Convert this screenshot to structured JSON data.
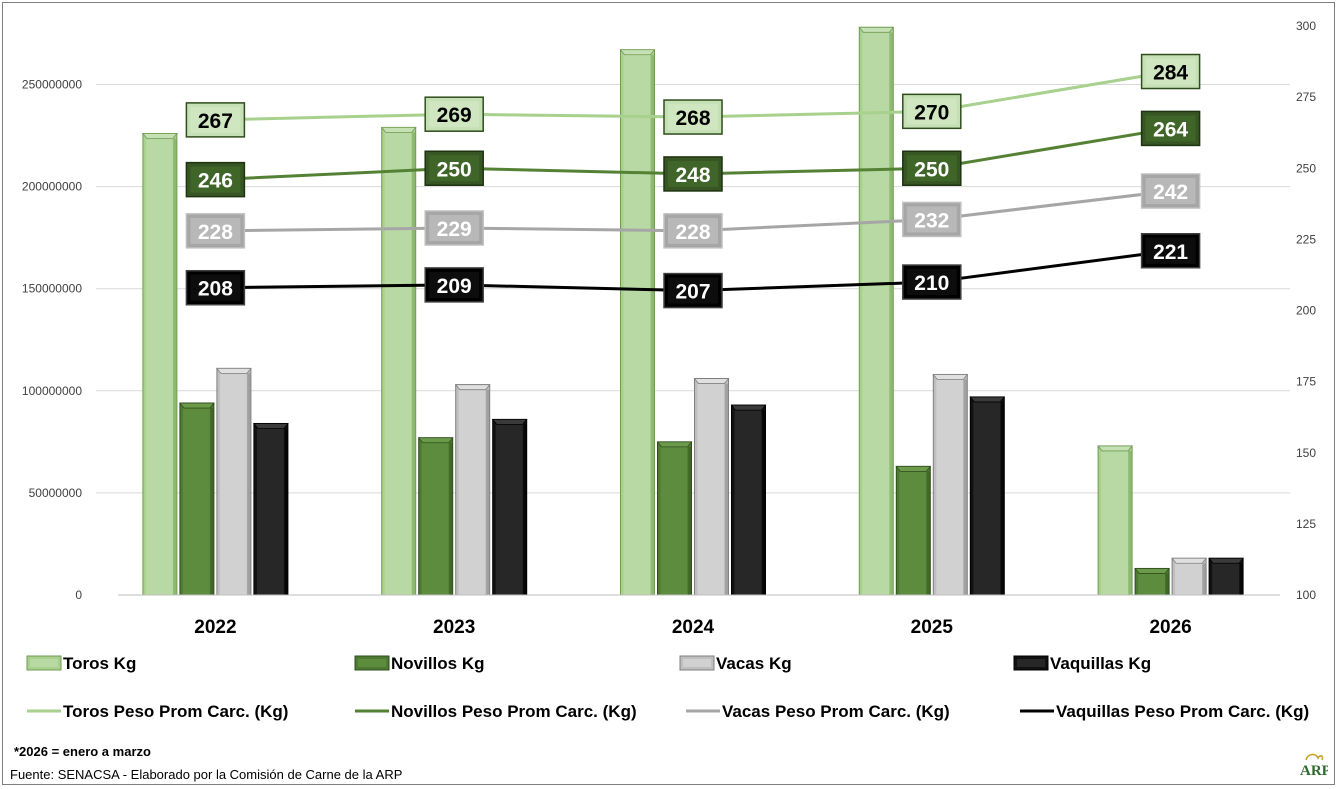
{
  "chart_data": {
    "type": "bar",
    "categories": [
      "2022",
      "2023",
      "2024",
      "2025",
      "2026"
    ],
    "y_left": {
      "min": 0,
      "max": 275000000,
      "ticks": [
        0,
        50000000,
        100000000,
        150000000,
        200000000,
        250000000
      ]
    },
    "y_right": {
      "min": 100,
      "max": 300,
      "ticks": [
        100,
        125,
        150,
        175,
        200,
        225,
        250,
        275,
        300
      ]
    },
    "grid": true,
    "legend_position": "bottom",
    "bar_series": [
      {
        "name": "Toros Kg",
        "values": [
          226000000,
          229000000,
          267000000,
          278000000,
          73000000
        ],
        "color": "#a9d18e"
      },
      {
        "name": "Novillos Kg",
        "values": [
          94000000,
          77000000,
          75000000,
          63000000,
          13000000
        ],
        "color": "#548235"
      },
      {
        "name": "Vacas Kg",
        "values": [
          111000000,
          103000000,
          106000000,
          108000000,
          18000000
        ],
        "color": "#bfbfbf"
      },
      {
        "name": "Vaquillas Kg",
        "values": [
          84000000,
          86000000,
          93000000,
          97000000,
          18000000
        ],
        "color": "#000000"
      }
    ],
    "line_series": [
      {
        "name": "Toros Peso Prom Carc. (Kg)",
        "values": [
          267,
          269,
          268,
          270,
          284
        ],
        "labels": [
          "267",
          "269",
          "268",
          "270",
          "284"
        ],
        "color": "#a9d18e"
      },
      {
        "name": "Novillos Peso Prom Carc. (Kg)",
        "values": [
          246,
          250,
          248,
          250,
          264
        ],
        "labels": [
          "246",
          "250",
          "248",
          "250",
          "264"
        ],
        "color": "#548235"
      },
      {
        "name": "Vacas Peso Prom Carc. (Kg)",
        "values": [
          228,
          229,
          228,
          232,
          242
        ],
        "labels": [
          "228",
          "229",
          "228",
          "232",
          "242"
        ],
        "color": "#a6a6a6"
      },
      {
        "name": "Vaquillas Peso Prom Carc. (Kg)",
        "values": [
          208,
          209,
          207,
          210,
          221
        ],
        "labels": [
          "208",
          "209",
          "207",
          "210",
          "221"
        ],
        "color": "#000000"
      }
    ]
  },
  "footer": {
    "note": "*2026 = enero a marzo",
    "source": "Fuente: SENACSA  - Elaborado por la Comisión de Carne de la ARP"
  },
  "logo": {
    "text": "ARP"
  }
}
